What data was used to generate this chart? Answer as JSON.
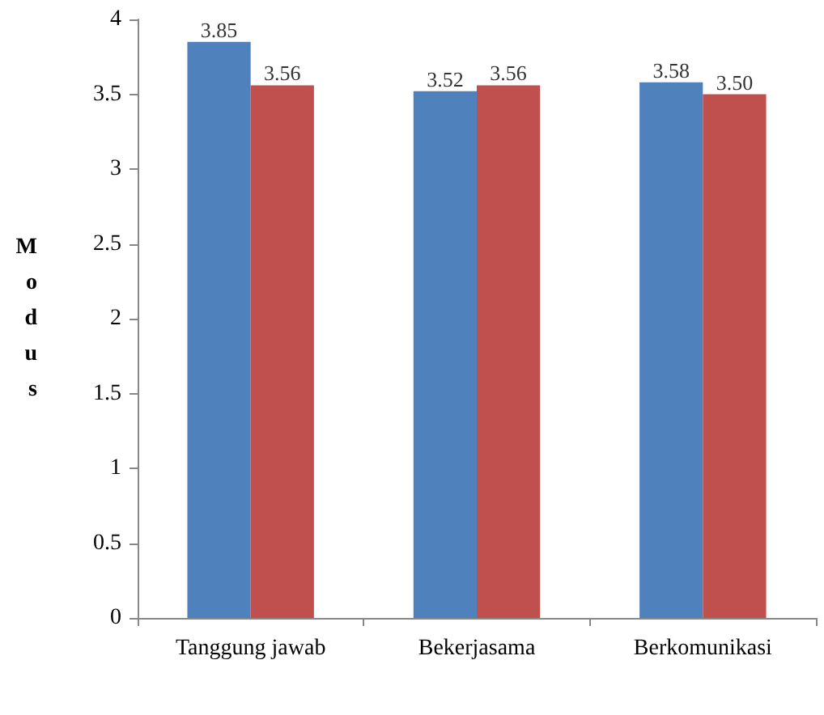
{
  "chart_data": {
    "type": "bar",
    "ylabel": "Modus",
    "categories": [
      "Tanggung jawab",
      "Bekerjasama",
      "Berkomunikasi"
    ],
    "series": [
      {
        "color": "#4f81bd",
        "values": [
          3.85,
          3.52,
          3.58
        ],
        "value_labels": [
          "3.85",
          "3.52",
          "3.58"
        ]
      },
      {
        "color": "#c0504d",
        "values": [
          3.56,
          3.56,
          3.5
        ],
        "value_labels": [
          "3.56",
          "3.56",
          "3.50"
        ]
      }
    ],
    "ylim": [
      0,
      4
    ],
    "yticks": [
      0,
      0.5,
      1,
      1.5,
      2,
      2.5,
      3,
      3.5,
      4
    ],
    "grid": false
  }
}
